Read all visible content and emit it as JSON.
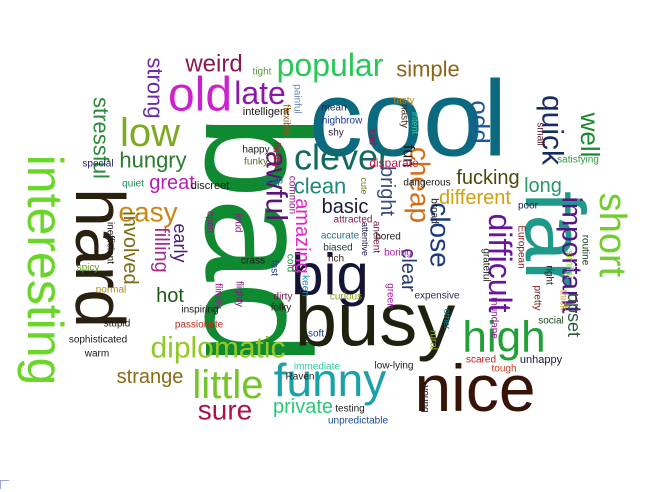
{
  "words": [
    {
      "text": "bad",
      "color": "#108a30"
    },
    {
      "text": "cool",
      "color": "#0c6a80"
    },
    {
      "text": "busy",
      "color": "#20200e"
    },
    {
      "text": "nice",
      "color": "#381408"
    },
    {
      "text": "hard",
      "color": "#2a2010"
    },
    {
      "text": "interesting",
      "color": "#6ad62a"
    },
    {
      "text": "far",
      "color": "#1f9a8a"
    },
    {
      "text": "big",
      "color": "#141436"
    },
    {
      "text": "funny",
      "color": "#1aa2a8"
    },
    {
      "text": "high",
      "color": "#22a038"
    },
    {
      "text": "old",
      "color": "#cc22cc"
    },
    {
      "text": "little",
      "color": "#74c428"
    },
    {
      "text": "low",
      "color": "#7caa20"
    },
    {
      "text": "short",
      "color": "#72ce2e"
    },
    {
      "text": "clever",
      "color": "#106a60"
    },
    {
      "text": "popular",
      "color": "#28c858"
    },
    {
      "text": "late",
      "color": "#8c18a8"
    },
    {
      "text": "quick",
      "color": "#162c62"
    },
    {
      "text": "well",
      "color": "#1a8a30"
    },
    {
      "text": "diplomatic",
      "color": "#92c828"
    },
    {
      "text": "sure",
      "color": "#a8144c"
    },
    {
      "text": "close",
      "color": "#1a3a7a"
    },
    {
      "text": "difficult",
      "color": "#6a14a0"
    },
    {
      "text": "important",
      "color": "#561486"
    },
    {
      "text": "cheap",
      "color": "#d46e14"
    },
    {
      "text": "easy",
      "color": "#c88818"
    },
    {
      "text": "awful",
      "color": "#5a1474"
    },
    {
      "text": "weird",
      "color": "#8a1850"
    },
    {
      "text": "simple",
      "color": "#8e6418"
    },
    {
      "text": "odd",
      "color": "#1a5a9a"
    },
    {
      "text": "stressful",
      "color": "#2a8a3a"
    },
    {
      "text": "strong",
      "color": "#6a2ca8"
    },
    {
      "text": "hungry",
      "color": "#2a7a30"
    },
    {
      "text": "great",
      "color": "#b420b4"
    },
    {
      "text": "different",
      "color": "#d0a010"
    },
    {
      "text": "fucking",
      "color": "#4a4a0a"
    },
    {
      "text": "long",
      "color": "#28986a"
    },
    {
      "text": "clean",
      "color": "#1a8a7a"
    },
    {
      "text": "basic",
      "color": "#1a1a3a"
    },
    {
      "text": "private",
      "color": "#28c878"
    },
    {
      "text": "strange",
      "color": "#8a6a14"
    },
    {
      "text": "hot",
      "color": "#1a5a14"
    },
    {
      "text": "involved",
      "color": "#7a6a14"
    },
    {
      "text": "amazing",
      "color": "#e424c8"
    },
    {
      "text": "bright",
      "color": "#3a4a7a"
    },
    {
      "text": "clear",
      "color": "#2a3a6a"
    },
    {
      "text": "upset",
      "color": "#2a5a3a"
    },
    {
      "text": "filling",
      "color": "#a22a8a"
    },
    {
      "text": "early",
      "color": "#4a1a7a"
    },
    {
      "text": "fun",
      "color": "#1a1a1a"
    },
    {
      "text": "intelligent",
      "color": "#1a1a1a"
    },
    {
      "text": "tight",
      "color": "#5a9a3a"
    },
    {
      "text": "painful",
      "color": "#6a8ab4"
    },
    {
      "text": "flexible",
      "color": "#8a5a1a"
    },
    {
      "text": "mean",
      "color": "#1a1a4a"
    },
    {
      "text": "highbrow",
      "color": "#1a3a9a"
    },
    {
      "text": "shy",
      "color": "#2a1a3a"
    },
    {
      "text": "nasty",
      "color": "#4a2a1a"
    },
    {
      "text": "tasty",
      "color": "#b48a14"
    },
    {
      "text": "intent",
      "color": "#3ac8a0"
    },
    {
      "text": "sad",
      "color": "#8a1a4a"
    },
    {
      "text": "cute",
      "color": "#6a7a1a"
    },
    {
      "text": "small",
      "color": "#5a1a2a"
    },
    {
      "text": "happy",
      "color": "#1a1a1a"
    },
    {
      "text": "funky",
      "color": "#5a6a1a"
    },
    {
      "text": "flashy",
      "color": "#a8144c"
    },
    {
      "text": "special",
      "color": "#1a1a6a"
    },
    {
      "text": "satisfying",
      "color": "#2aa03a"
    },
    {
      "text": "disparate",
      "color": "#c81a4a"
    },
    {
      "text": "dangerous",
      "color": "#1a1a1a"
    },
    {
      "text": "quiet",
      "color": "#1a8a5a"
    },
    {
      "text": "discreet",
      "color": "#1a1a1a"
    },
    {
      "text": "deep",
      "color": "#1a7a8a"
    },
    {
      "text": "common",
      "color": "#8a1a8a"
    },
    {
      "text": "attracted",
      "color": "#7a1a4a"
    },
    {
      "text": "broad",
      "color": "#1a1a1a"
    },
    {
      "text": "poor",
      "color": "#1a1a4a"
    },
    {
      "text": "open",
      "color": "#8a1a8a"
    },
    {
      "text": "loud",
      "color": "#8a1a8a"
    },
    {
      "text": "accurate",
      "color": "#1a7a8a"
    },
    {
      "text": "biased",
      "color": "#1a3a3a"
    },
    {
      "text": "ancient",
      "color": "#7a1a3a"
    },
    {
      "text": "attentive",
      "color": "#1a1a4a"
    },
    {
      "text": "bored",
      "color": "#1a1a1a"
    },
    {
      "text": "European",
      "color": "#8a1a1a"
    },
    {
      "text": "right",
      "color": "#1a1a1a"
    },
    {
      "text": "thick",
      "color": "#c8a01a"
    },
    {
      "text": "spicy",
      "color": "#5aa01a"
    },
    {
      "text": "inefficient",
      "color": "#1a1a1a"
    },
    {
      "text": "crass",
      "color": "#1a1a1a"
    },
    {
      "text": "rich",
      "color": "#3a1a1a"
    },
    {
      "text": "boring",
      "color": "#a81aa8"
    },
    {
      "text": "routine",
      "color": "#1a3a1a"
    },
    {
      "text": "similar",
      "color": "#8ac81a"
    },
    {
      "text": "normal",
      "color": "#b48a14"
    },
    {
      "text": "cold",
      "color": "#1a9a3a"
    },
    {
      "text": "fast",
      "color": "#1a3a7a"
    },
    {
      "text": "flighty",
      "color": "#7a1a7a"
    },
    {
      "text": "grateful",
      "color": "#1a1a1a"
    },
    {
      "text": "expensive",
      "color": "#2a2a5a"
    },
    {
      "text": "dirty",
      "color": "#6a1a4a"
    },
    {
      "text": "keen",
      "color": "#1a8ab4"
    },
    {
      "text": "curious",
      "color": "#8aa01a"
    },
    {
      "text": "flimsy",
      "color": "#9a1a9a"
    },
    {
      "text": "folky",
      "color": "#1a1a1a"
    },
    {
      "text": "inspiring",
      "color": "#1a1a1a"
    },
    {
      "text": "mundane",
      "color": "#8a1a8a"
    },
    {
      "text": "pretty",
      "color": "#7a1a1a"
    },
    {
      "text": "green",
      "color": "#a81aa8"
    },
    {
      "text": "other",
      "color": "#1a7a8a"
    },
    {
      "text": "social",
      "color": "#1a4a1a"
    },
    {
      "text": "stupid",
      "color": "#1a1a1a"
    },
    {
      "text": "passionate",
      "color": "#b42a1a"
    },
    {
      "text": "soft",
      "color": "#1a3a9a"
    },
    {
      "text": "sophisticated",
      "color": "#1a1a1a"
    },
    {
      "text": "rural",
      "color": "#8ab41a"
    },
    {
      "text": "unhappy",
      "color": "#1a1a3a"
    },
    {
      "text": "warm",
      "color": "#1a1a1a"
    },
    {
      "text": "scared",
      "color": "#c81a1a"
    },
    {
      "text": "low-lying",
      "color": "#1a1a1a"
    },
    {
      "text": "immediate",
      "color": "#2ac8a0"
    },
    {
      "text": "tough",
      "color": "#c83a1a"
    },
    {
      "text": "Raven",
      "color": "#1a1a1a"
    },
    {
      "text": "testing",
      "color": "#1a1a1a"
    },
    {
      "text": "young",
      "color": "#1a1a1a"
    },
    {
      "text": "unpredictable",
      "color": "#1a4a9a"
    }
  ]
}
